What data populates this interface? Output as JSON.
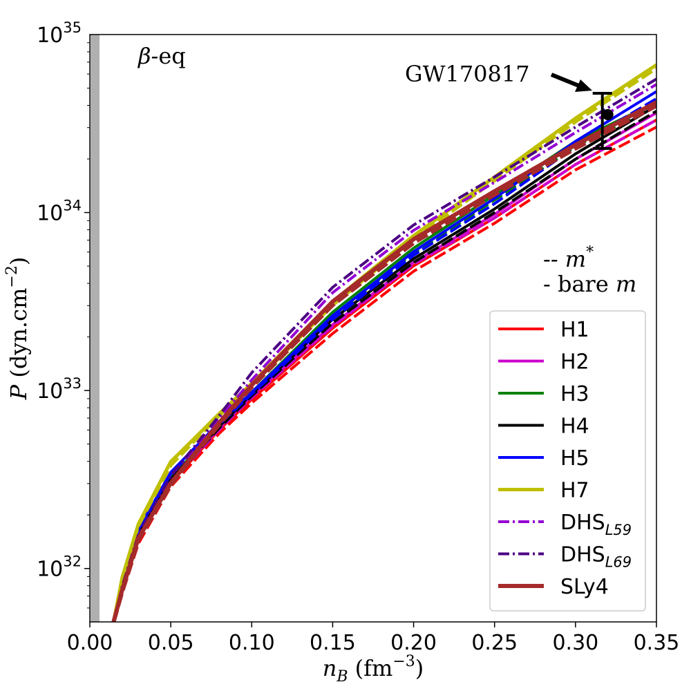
{
  "chart_data": {
    "type": "line",
    "title": "",
    "xlabel": {
      "var": "n",
      "sub": "B",
      "unit": "(fm",
      "exp": "−3",
      "close": ")"
    },
    "ylabel": {
      "var": "P",
      "unit": "(dyn.cm",
      "exp": "−2",
      "close": ")"
    },
    "xlim": [
      0.0,
      0.35
    ],
    "ylim_log10": [
      31.7,
      35.0
    ],
    "x_ticks": [
      {
        "v": 0.0,
        "label": "0.00"
      },
      {
        "v": 0.05,
        "label": "0.05"
      },
      {
        "v": 0.1,
        "label": "0.10"
      },
      {
        "v": 0.15,
        "label": "0.15"
      },
      {
        "v": 0.2,
        "label": "0.20"
      },
      {
        "v": 0.25,
        "label": "0.25"
      },
      {
        "v": 0.3,
        "label": "0.30"
      },
      {
        "v": 0.35,
        "label": "0.35"
      }
    ],
    "y_ticks": [
      {
        "exp": 32,
        "base": "10",
        "power": "32"
      },
      {
        "exp": 33,
        "base": "10",
        "power": "33"
      },
      {
        "exp": 34,
        "base": "10",
        "power": "34"
      },
      {
        "exp": 35,
        "base": "10",
        "power": "35"
      }
    ],
    "shaded_band_x": [
      0.0,
      0.003
    ],
    "annotations": {
      "beta_eq": {
        "symbol": "β",
        "text": "-eq"
      },
      "gw": {
        "text": "GW170817",
        "point_x": 0.32,
        "point_log10": 34.55,
        "err_low_log10": 34.36,
        "err_high_log10": 34.67
      },
      "line_style_note": [
        {
          "prefix": "--",
          "text": "m",
          "sup": "*"
        },
        {
          "prefix": "-",
          "text": "bare",
          "italic": "m"
        }
      ]
    },
    "series": [
      {
        "name": "H1",
        "color": "#ff0000",
        "style": "solid",
        "width": 4,
        "x": [
          0.0147,
          0.02,
          0.03,
          0.05,
          0.08,
          0.1,
          0.15,
          0.2,
          0.25,
          0.3,
          0.35
        ],
        "log10": [
          31.7,
          31.88,
          32.16,
          32.48,
          32.78,
          32.95,
          33.35,
          33.7,
          33.97,
          34.27,
          34.52
        ],
        "dashed_log10": [
          31.7,
          31.86,
          32.14,
          32.46,
          32.76,
          32.93,
          33.32,
          33.67,
          33.94,
          34.24,
          34.48
        ]
      },
      {
        "name": "H2",
        "color": "#cc00cc",
        "style": "solid",
        "width": 4,
        "x": [
          0.0147,
          0.02,
          0.03,
          0.05,
          0.08,
          0.1,
          0.15,
          0.2,
          0.25,
          0.3,
          0.35
        ],
        "log10": [
          31.7,
          31.89,
          32.17,
          32.49,
          32.79,
          32.97,
          33.37,
          33.72,
          33.99,
          34.3,
          34.56
        ],
        "dashed_log10": [
          31.7,
          31.88,
          32.16,
          32.48,
          32.78,
          32.96,
          33.36,
          33.71,
          33.97,
          34.27,
          34.52
        ]
      },
      {
        "name": "H3",
        "color": "#008000",
        "style": "solid",
        "width": 4,
        "x": [
          0.0147,
          0.02,
          0.03,
          0.05,
          0.08,
          0.1,
          0.15,
          0.2,
          0.25,
          0.3,
          0.35
        ],
        "log10": [
          31.7,
          31.9,
          32.2,
          32.51,
          32.8,
          32.99,
          33.44,
          33.8,
          34.1,
          34.4,
          34.62
        ],
        "dashed_log10": [
          31.7,
          31.89,
          32.18,
          32.5,
          32.8,
          32.98,
          33.42,
          33.77,
          34.07,
          34.37,
          34.6
        ]
      },
      {
        "name": "H4",
        "color": "#000000",
        "style": "solid",
        "width": 4,
        "x": [
          0.0147,
          0.02,
          0.03,
          0.05,
          0.08,
          0.1,
          0.15,
          0.2,
          0.25,
          0.3,
          0.35
        ],
        "log10": [
          31.7,
          31.9,
          32.19,
          32.5,
          32.8,
          32.98,
          33.4,
          33.74,
          34.02,
          34.33,
          34.6
        ],
        "dashed_log10": [
          31.7,
          31.89,
          32.18,
          32.49,
          32.79,
          32.97,
          33.38,
          33.72,
          34.0,
          34.3,
          34.57
        ]
      },
      {
        "name": "H5",
        "color": "#0000ff",
        "style": "solid",
        "width": 4,
        "x": [
          0.0147,
          0.02,
          0.03,
          0.05,
          0.08,
          0.1,
          0.15,
          0.2,
          0.25,
          0.3,
          0.35
        ],
        "log10": [
          31.7,
          31.92,
          32.22,
          32.54,
          32.82,
          32.99,
          33.42,
          33.78,
          34.08,
          34.4,
          34.68
        ],
        "dashed_log10": [
          31.7,
          31.91,
          32.21,
          32.53,
          32.81,
          32.98,
          33.4,
          33.76,
          34.05,
          34.37,
          34.64
        ]
      },
      {
        "name": "H7",
        "color": "#bfbf00",
        "style": "solid",
        "width": 5,
        "x": [
          0.0147,
          0.02,
          0.03,
          0.05,
          0.08,
          0.1,
          0.15,
          0.2,
          0.25,
          0.3,
          0.35
        ],
        "log10": [
          31.7,
          31.95,
          32.25,
          32.6,
          32.87,
          33.04,
          33.5,
          33.87,
          34.2,
          34.53,
          34.83
        ],
        "dashed_log10": [
          31.7,
          31.94,
          32.24,
          32.58,
          32.86,
          33.03,
          33.48,
          33.85,
          34.18,
          34.51,
          34.81
        ]
      },
      {
        "name": "DHS",
        "sub": "L59",
        "color": "#9400d3",
        "style": "dashdot",
        "width": 4,
        "x": [
          0.0147,
          0.02,
          0.03,
          0.05,
          0.08,
          0.1,
          0.15,
          0.2,
          0.25,
          0.3,
          0.35
        ],
        "log10": [
          31.7,
          31.9,
          32.19,
          32.52,
          32.84,
          33.06,
          33.55,
          33.9,
          34.17,
          34.45,
          34.72
        ]
      },
      {
        "name": "DHS",
        "sub": "L69",
        "color": "#4b0082",
        "style": "dashdot",
        "width": 4,
        "x": [
          0.0147,
          0.02,
          0.03,
          0.05,
          0.08,
          0.1,
          0.15,
          0.2,
          0.25,
          0.3,
          0.35
        ],
        "log10": [
          31.7,
          31.9,
          32.19,
          32.52,
          32.86,
          33.1,
          33.58,
          33.93,
          34.2,
          34.48,
          34.75
        ]
      },
      {
        "name": "SLy4",
        "color": "#a52a2a",
        "style": "solid",
        "width": 6,
        "x": [
          0.0147,
          0.02,
          0.03,
          0.05,
          0.08,
          0.1,
          0.15,
          0.2,
          0.25,
          0.3,
          0.35
        ],
        "log10": [
          31.7,
          31.88,
          32.17,
          32.48,
          32.82,
          33.03,
          33.5,
          33.85,
          34.12,
          34.38,
          34.62
        ],
        "dashed_log10": [
          31.7,
          31.87,
          32.16,
          32.47,
          32.81,
          33.02,
          33.48,
          33.83,
          34.1,
          34.36,
          34.6
        ]
      }
    ],
    "legend_position": "lower-right"
  }
}
